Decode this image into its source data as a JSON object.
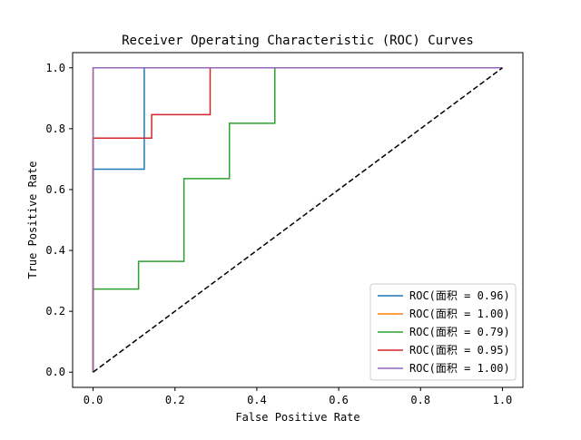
{
  "chart_data": {
    "type": "line",
    "title": "Receiver Operating Characteristic (ROC) Curves",
    "xlabel": "False Positive Rate",
    "ylabel": "True Positive Rate",
    "xlim": [
      -0.05,
      1.05
    ],
    "ylim": [
      -0.05,
      1.05
    ],
    "xticks": [
      0.0,
      0.2,
      0.4,
      0.6,
      0.8,
      1.0
    ],
    "yticks": [
      0.0,
      0.2,
      0.4,
      0.6,
      0.8,
      1.0
    ],
    "xtick_labels": [
      "0.0",
      "0.2",
      "0.4",
      "0.6",
      "0.8",
      "1.0"
    ],
    "ytick_labels": [
      "0.0",
      "0.2",
      "0.4",
      "0.6",
      "0.8",
      "1.0"
    ],
    "grid": false,
    "legend_position": "bottom-right",
    "series": [
      {
        "name": "ROC(面积 = 0.96)",
        "color": "#1f77b4",
        "x": [
          0,
          0,
          0.125,
          0.125,
          1
        ],
        "y": [
          0,
          0.667,
          0.667,
          1.0,
          1.0
        ]
      },
      {
        "name": "ROC(面积 = 1.00)",
        "color": "#ff7f0e",
        "x": [
          0,
          0,
          1
        ],
        "y": [
          0,
          1.0,
          1.0
        ]
      },
      {
        "name": "ROC(面积 = 0.79)",
        "color": "#2ca02c",
        "x": [
          0,
          0,
          0.111,
          0.111,
          0.222,
          0.222,
          0.333,
          0.333,
          0.444,
          0.444,
          1
        ],
        "y": [
          0,
          0.273,
          0.273,
          0.364,
          0.364,
          0.636,
          0.636,
          0.818,
          0.818,
          1.0,
          1.0
        ]
      },
      {
        "name": "ROC(面积 = 0.95)",
        "color": "#d62728",
        "x": [
          0,
          0,
          0.143,
          0.143,
          0.286,
          0.286,
          1
        ],
        "y": [
          0,
          0.769,
          0.769,
          0.846,
          0.846,
          1.0,
          1.0
        ]
      },
      {
        "name": "ROC(面积 = 1.00)",
        "color": "#9467bd",
        "x": [
          0,
          0,
          1
        ],
        "y": [
          0,
          1.0,
          1.0
        ]
      }
    ],
    "reference_line": {
      "x": [
        0,
        1
      ],
      "y": [
        0,
        1
      ],
      "color": "#000000",
      "style": "dashed"
    }
  }
}
